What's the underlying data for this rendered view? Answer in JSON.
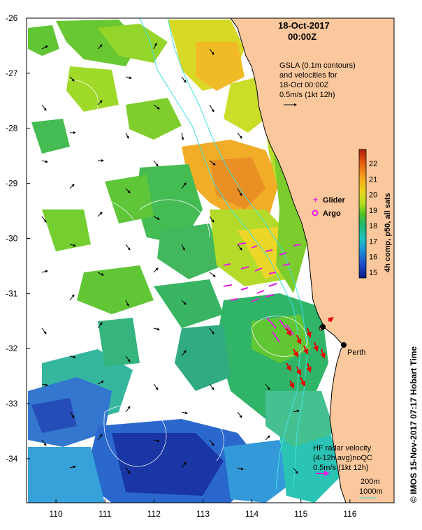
{
  "title": {
    "date": "18-Oct-2017",
    "time": "00:00Z"
  },
  "gsla_note": {
    "line1": "GSLA (0.1m contours)",
    "line2": "and velocities for",
    "line3": "18-Oct 00:00Z",
    "line4": "0.5m/s (1kt 12h)"
  },
  "colorbar": {
    "label": "4h comp, p50, all sats",
    "ticks": [
      "22",
      "21",
      "20",
      "19",
      "18",
      "17",
      "16",
      "15"
    ],
    "stops": [
      "#081c86",
      "#1f49c4",
      "#1f88d8",
      "#1dc1c4",
      "#23b86a",
      "#52c41e",
      "#b4dd1e",
      "#f0d21c",
      "#f2a41c",
      "#e45a12",
      "#b01a0a"
    ]
  },
  "legend": {
    "glider": "Glider",
    "argo": "Argo",
    "glider_color": "#e41ee4",
    "argo_color": "#e41ee4"
  },
  "location": {
    "name": "Perth",
    "lon": 115.86,
    "lat": -31.95
  },
  "hf_radar": {
    "line1": "HF radar velocity",
    "line2": "(4-12h avg)noQC",
    "line3": "0.5m/s (1kt 12h)"
  },
  "isobaths": {
    "line1": "200m",
    "line2": "1000m"
  },
  "axes": {
    "y_ticks": [
      "-26",
      "-27",
      "-28",
      "-29",
      "-30",
      "-31",
      "-32",
      "-33",
      "-34"
    ],
    "x_ticks": [
      "110",
      "111",
      "112",
      "113",
      "114",
      "115",
      "116"
    ],
    "lon_range": [
      109.4,
      116.9
    ],
    "lat_range": [
      -34.8,
      -26.0
    ]
  },
  "credit": "© IMOS 15-Nov-2017 07:17 Hobart Time",
  "colors": {
    "land": "#fac89c",
    "coast": "#000000",
    "ocean": "#ffffff",
    "contour": "#40e0e0",
    "radar": "#e80000"
  }
}
